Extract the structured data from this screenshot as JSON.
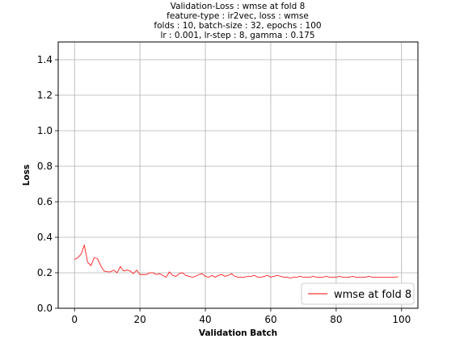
{
  "chart_data": {
    "type": "line",
    "title_lines": [
      "Validation-Loss : wmse at fold 8",
      "feature-type : ir2vec, loss : wmse",
      "folds : 10, batch-size : 32, epochs : 100",
      "lr : 0.001, lr-step : 8, gamma : 0.175"
    ],
    "xlabel": "Validation Batch",
    "ylabel": "Loss",
    "xlim": [
      -5,
      105
    ],
    "ylim": [
      0,
      1.5
    ],
    "xticks": [
      0,
      20,
      40,
      60,
      80,
      100
    ],
    "yticks": [
      0.0,
      0.2,
      0.4,
      0.6,
      0.8,
      1.0,
      1.2,
      1.4
    ],
    "grid": true,
    "legend_position": "bottom-right",
    "series": [
      {
        "name": "wmse at fold 8",
        "color": "#ff0000",
        "x": [
          0,
          1,
          2,
          3,
          4,
          5,
          6,
          7,
          8,
          9,
          10,
          11,
          12,
          13,
          14,
          15,
          16,
          17,
          18,
          19,
          20,
          21,
          22,
          23,
          24,
          25,
          26,
          27,
          28,
          29,
          30,
          31,
          32,
          33,
          34,
          35,
          36,
          37,
          38,
          39,
          40,
          41,
          42,
          43,
          44,
          45,
          46,
          47,
          48,
          49,
          50,
          51,
          52,
          53,
          54,
          55,
          56,
          57,
          58,
          59,
          60,
          61,
          62,
          63,
          64,
          65,
          66,
          67,
          68,
          69,
          70,
          71,
          72,
          73,
          74,
          75,
          76,
          77,
          78,
          79,
          80,
          81,
          82,
          83,
          84,
          85,
          86,
          87,
          88,
          89,
          90,
          91,
          92,
          93,
          94,
          95,
          96,
          97,
          98,
          99
        ],
        "values": [
          0.275,
          0.285,
          0.305,
          0.355,
          0.26,
          0.24,
          0.285,
          0.28,
          0.24,
          0.21,
          0.205,
          0.205,
          0.215,
          0.2,
          0.235,
          0.21,
          0.215,
          0.21,
          0.195,
          0.215,
          0.19,
          0.19,
          0.19,
          0.2,
          0.2,
          0.19,
          0.195,
          0.185,
          0.175,
          0.205,
          0.185,
          0.18,
          0.195,
          0.2,
          0.185,
          0.18,
          0.175,
          0.18,
          0.19,
          0.195,
          0.18,
          0.175,
          0.185,
          0.175,
          0.185,
          0.19,
          0.18,
          0.185,
          0.195,
          0.18,
          0.175,
          0.175,
          0.175,
          0.18,
          0.18,
          0.185,
          0.175,
          0.175,
          0.18,
          0.185,
          0.175,
          0.18,
          0.185,
          0.18,
          0.175,
          0.175,
          0.17,
          0.175,
          0.175,
          0.18,
          0.175,
          0.175,
          0.175,
          0.18,
          0.175,
          0.175,
          0.175,
          0.18,
          0.175,
          0.175,
          0.175,
          0.18,
          0.175,
          0.175,
          0.175,
          0.18,
          0.175,
          0.175,
          0.175,
          0.175,
          0.18,
          0.175,
          0.175,
          0.175,
          0.175,
          0.175,
          0.175,
          0.175,
          0.175,
          0.178
        ]
      }
    ]
  }
}
